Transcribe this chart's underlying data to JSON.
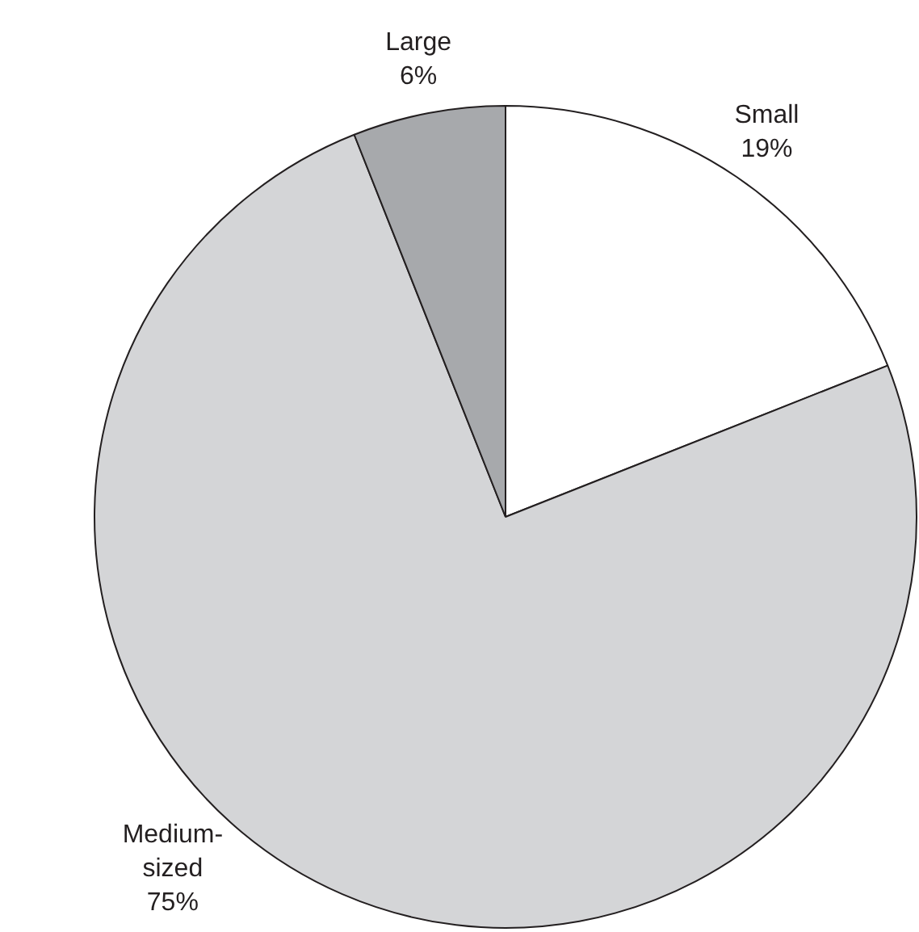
{
  "chart_data": {
    "type": "pie",
    "categories": [
      "Small",
      "Medium-sized",
      "Large"
    ],
    "values": [
      19,
      75,
      6
    ],
    "colors": [
      "#ffffff",
      "#d4d5d7",
      "#a7a9ac"
    ],
    "value_labels": [
      "19%",
      "75%",
      "6%"
    ],
    "legend": false
  }
}
